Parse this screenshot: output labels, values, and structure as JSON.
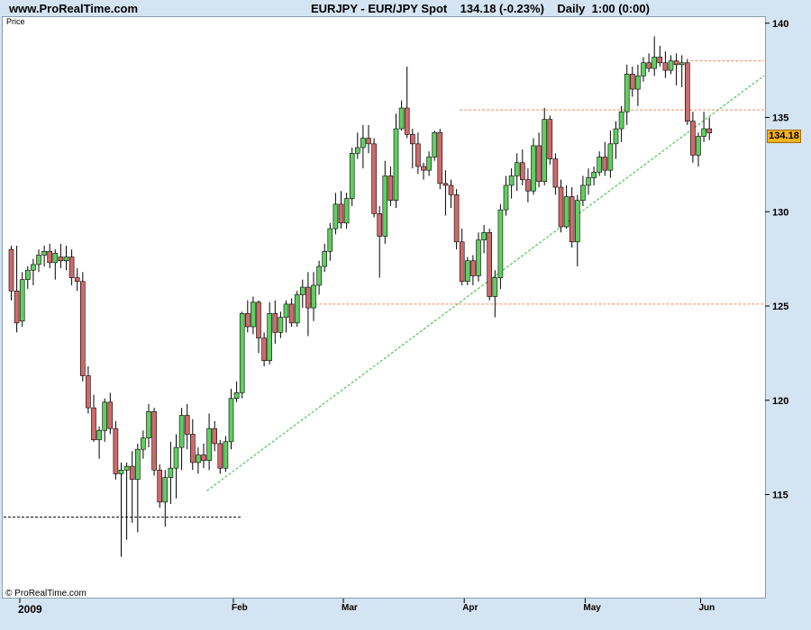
{
  "header": {
    "site": "www.ProRealTime.com",
    "title": "EURJPY - EUR/JPY Spot    134.18 (-0.23%)    Daily  1:00 (0:00)"
  },
  "panel": {
    "price_label": "Price",
    "copyright": "© ProRealTime.com"
  },
  "last_price_badge": "134.18",
  "colors": {
    "up_candle": "#5fcf5f",
    "down_candle": "#cf6a6a",
    "resistance": "#e98a5a",
    "trendline": "#2fbf2f",
    "support_low": "#000000"
  },
  "chart_data": {
    "type": "candlestick",
    "symbol": "EURJPY",
    "timeframe": "Daily",
    "last": 134.18,
    "change_pct": -0.23,
    "ylim": [
      110.5,
      140.5
    ],
    "y_ticks": [
      115,
      120,
      125,
      130,
      135,
      140
    ],
    "x_labels": [
      {
        "label": "2009",
        "index": 0,
        "year": true
      },
      {
        "label": "Feb",
        "index": 40
      },
      {
        "label": "Mar",
        "index": 60
      },
      {
        "label": "Apr",
        "index": 82
      },
      {
        "label": "May",
        "index": 104
      },
      {
        "label": "Jun",
        "index": 125
      }
    ],
    "candles": [
      [
        128,
        128.2,
        125.3,
        125.8
      ],
      [
        125.8,
        128.2,
        123.6,
        124.1
      ],
      [
        124.2,
        126.8,
        123.9,
        126.4
      ],
      [
        126.4,
        127.1,
        125.9,
        126.9
      ],
      [
        126.9,
        127.5,
        126.1,
        127.2
      ],
      [
        127.2,
        128,
        126.8,
        127.7
      ],
      [
        127.7,
        128.2,
        127.1,
        127.9
      ],
      [
        127.9,
        128.3,
        127,
        127.3
      ],
      [
        127.3,
        128,
        126.4,
        127.8
      ],
      [
        127.6,
        128.3,
        127,
        127.4
      ],
      [
        127.4,
        128.2,
        126.9,
        127.6
      ],
      [
        127.6,
        128,
        126.1,
        126.5
      ],
      [
        126.5,
        127,
        125.8,
        126.3
      ],
      [
        126.3,
        126.8,
        121,
        121.3
      ],
      [
        121.3,
        121.8,
        119.3,
        119.6
      ],
      [
        119.6,
        120.3,
        117.8,
        117.9
      ],
      [
        117.9,
        118.6,
        116.9,
        118.4
      ],
      [
        118.4,
        120.1,
        117.8,
        119.9
      ],
      [
        119.9,
        120.4,
        118.2,
        118.5
      ],
      [
        118.5,
        118.9,
        115.8,
        116.1
      ],
      [
        116.1,
        116.7,
        111.7,
        116.3
      ],
      [
        116.3,
        116.7,
        112.6,
        116.5
      ],
      [
        116.5,
        117.3,
        113.5,
        115.8
      ],
      [
        115.8,
        117.7,
        113,
        117.4
      ],
      [
        117.4,
        118.4,
        116.9,
        118
      ],
      [
        118,
        119.8,
        117.5,
        119.4
      ],
      [
        119.4,
        119.6,
        116,
        116.3
      ],
      [
        116.3,
        116.6,
        114.3,
        114.6
      ],
      [
        114.6,
        116.3,
        113.3,
        115.9
      ],
      [
        115.9,
        117.8,
        114.5,
        116.4
      ],
      [
        116.4,
        118.2,
        114.8,
        117.5
      ],
      [
        117.5,
        119.6,
        116.3,
        119.2
      ],
      [
        119.2,
        119.8,
        117.4,
        118.2
      ],
      [
        118.2,
        119,
        116.3,
        116.7
      ],
      [
        116.7,
        117.5,
        116.1,
        117.1
      ],
      [
        117.1,
        117.7,
        116.4,
        116.8
      ],
      [
        116.8,
        119.3,
        116.3,
        118.5
      ],
      [
        118.5,
        118.9,
        117.3,
        117.7
      ],
      [
        117.7,
        117.9,
        116.1,
        116.4
      ],
      [
        116.4,
        118.1,
        116.2,
        117.8
      ],
      [
        117.8,
        120.6,
        117.4,
        120.1
      ],
      [
        120.1,
        121,
        119.9,
        120.4
      ],
      [
        120.4,
        124.7,
        120.1,
        124.6
      ],
      [
        124.6,
        125.3,
        123.6,
        123.9
      ],
      [
        123.9,
        125.5,
        123.5,
        125.2
      ],
      [
        125.2,
        125.3,
        122.5,
        123.3
      ],
      [
        123.3,
        123.6,
        121.8,
        122.1
      ],
      [
        122.1,
        125.2,
        121.9,
        124.6
      ],
      [
        124.6,
        125.3,
        123,
        123.6
      ],
      [
        123.6,
        124.7,
        123.3,
        124.4
      ],
      [
        124.4,
        125.3,
        123.6,
        125.1
      ],
      [
        125.1,
        125.4,
        123.9,
        124.1
      ],
      [
        124.1,
        125.8,
        123.9,
        125.6
      ],
      [
        125.6,
        126.4,
        124.9,
        126
      ],
      [
        126,
        126.8,
        123.4,
        124.9
      ],
      [
        124.9,
        126.8,
        124.2,
        126.1
      ],
      [
        126.1,
        127.4,
        125.6,
        127.1
      ],
      [
        127.1,
        128.3,
        126.8,
        127.9
      ],
      [
        127.9,
        129.4,
        127.4,
        129.1
      ],
      [
        129.1,
        131,
        128.8,
        130.4
      ],
      [
        130.4,
        131.1,
        129.1,
        129.4
      ],
      [
        129.4,
        131,
        129.1,
        130.7
      ],
      [
        130.7,
        133.4,
        130.3,
        133.1
      ],
      [
        133.1,
        134.2,
        132.8,
        133.4
      ],
      [
        133.4,
        134.6,
        132.3,
        133.9
      ],
      [
        133.9,
        134.6,
        133.1,
        133.6
      ],
      [
        133.6,
        133.9,
        129.7,
        129.9
      ],
      [
        129.9,
        130.3,
        126.5,
        128.7
      ],
      [
        128.7,
        132.7,
        128.3,
        131.9
      ],
      [
        131.9,
        132.4,
        130.3,
        130.6
      ],
      [
        130.6,
        135.2,
        130.2,
        134.4
      ],
      [
        134.4,
        135.9,
        134.3,
        135.5
      ],
      [
        135.5,
        137.7,
        133.9,
        134.1
      ],
      [
        134.1,
        134.4,
        132.3,
        133.6
      ],
      [
        133.6,
        134.2,
        132,
        132.4
      ],
      [
        132.4,
        132.6,
        131.7,
        132.2
      ],
      [
        132.2,
        133.2,
        131.9,
        132.9
      ],
      [
        132.9,
        134.3,
        132.7,
        134.2
      ],
      [
        134.2,
        134.4,
        131.2,
        131.5
      ],
      [
        131.5,
        132.2,
        129.8,
        131.4
      ],
      [
        131.4,
        131.7,
        130.2,
        130.9
      ],
      [
        130.9,
        131.2,
        128,
        128.4
      ],
      [
        128.4,
        129.1,
        126.1,
        126.3
      ],
      [
        126.3,
        127.6,
        126.1,
        127.4
      ],
      [
        127.4,
        127.7,
        126.1,
        126.6
      ],
      [
        126.6,
        128.9,
        126.3,
        128.5
      ],
      [
        128.5,
        129.3,
        127.8,
        128.9
      ],
      [
        128.9,
        129.1,
        125.3,
        125.5
      ],
      [
        125.5,
        126.9,
        124.4,
        126.5
      ],
      [
        126.5,
        130.4,
        125.9,
        130.1
      ],
      [
        130.1,
        131.9,
        129.8,
        131.4
      ],
      [
        131.4,
        132.3,
        130.7,
        131.9
      ],
      [
        131.9,
        133.1,
        131.1,
        132.6
      ],
      [
        132.6,
        133.3,
        131.4,
        131.7
      ],
      [
        131.7,
        132.3,
        130.5,
        131.1
      ],
      [
        131.1,
        133.9,
        130.9,
        133.5
      ],
      [
        133.5,
        134.2,
        131.3,
        131.6
      ],
      [
        131.6,
        135.5,
        131.4,
        134.9
      ],
      [
        134.9,
        135.1,
        132.5,
        132.8
      ],
      [
        132.8,
        133.1,
        130.9,
        131.3
      ],
      [
        131.3,
        131.7,
        128.9,
        129.2
      ],
      [
        129.2,
        131.4,
        129.1,
        130.8
      ],
      [
        130.8,
        131.3,
        128.1,
        128.4
      ],
      [
        128.4,
        130.9,
        127.1,
        130.6
      ],
      [
        130.6,
        131.9,
        130.3,
        131.4
      ],
      [
        131.4,
        132.3,
        130.9,
        131.8
      ],
      [
        131.8,
        132.4,
        131.4,
        132.1
      ],
      [
        132.1,
        133.2,
        131.9,
        132.9
      ],
      [
        132.9,
        133.7,
        131.9,
        132.2
      ],
      [
        132.2,
        134.3,
        131.8,
        133.6
      ],
      [
        133.6,
        134.8,
        132.8,
        134.4
      ],
      [
        134.4,
        135.6,
        133.7,
        135.3
      ],
      [
        135.3,
        137.8,
        134.6,
        137.3
      ],
      [
        137.3,
        137.7,
        136.1,
        136.5
      ],
      [
        136.5,
        137.8,
        135.6,
        137.2
      ],
      [
        137.2,
        138.2,
        136.9,
        137.9
      ],
      [
        137.9,
        138.4,
        137.4,
        137.6
      ],
      [
        137.6,
        139.3,
        137.2,
        138.2
      ],
      [
        138.2,
        138.8,
        137.7,
        137.9
      ],
      [
        137.9,
        138.5,
        137.1,
        137.5
      ],
      [
        137.5,
        138.3,
        137.3,
        138
      ],
      [
        138,
        138.4,
        136.7,
        137.8
      ],
      [
        137.8,
        138.3,
        136.6,
        137.9
      ],
      [
        137.9,
        138.1,
        134.6,
        134.8
      ],
      [
        134.8,
        135.3,
        132.6,
        133
      ],
      [
        133,
        134.2,
        132.4,
        134
      ],
      [
        134,
        135.3,
        133.7,
        134.4
      ],
      [
        134.4,
        135,
        133.8,
        134.18
      ]
    ],
    "resistance_lines": [
      {
        "y": 138.0,
        "from_index": 124
      },
      {
        "y": 135.4,
        "from_index": 82
      },
      {
        "y": 125.1,
        "from_index": 54
      }
    ],
    "support_line": {
      "y": 113.8,
      "to_index": 42
    },
    "trendline": {
      "from": [
        36,
        115.2
      ],
      "to": [
        129,
        135.4
      ]
    }
  }
}
